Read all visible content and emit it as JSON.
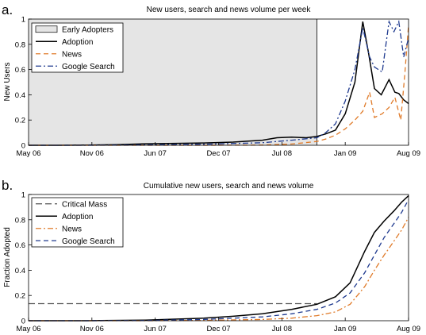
{
  "chart_data": [
    {
      "type": "line",
      "panel_label": "a.",
      "title": "New users, search and news volume per week",
      "xlabel": "",
      "ylabel": "New Users",
      "x_ticks": [
        "May 06",
        "Nov 06",
        "Jun 07",
        "Dec 07",
        "Jul 08",
        "Jan 09",
        "Aug 09"
      ],
      "xlim": [
        0,
        39
      ],
      "ylim": [
        0,
        1
      ],
      "y_ticks": [
        "0",
        "0.2",
        "0.4",
        "0.6",
        "0.8",
        "1"
      ],
      "grid": false,
      "legend_position": "top-left",
      "shaded_region": {
        "name": "Early Adopters",
        "x_start": 0,
        "x_end": 29.6,
        "color": "#e5e5e5"
      },
      "series": [
        {
          "name": "Adoption",
          "color": "#000000",
          "dash": "solid",
          "x": [
            0,
            3,
            6,
            9,
            12,
            15,
            18,
            21,
            24,
            25.5,
            27,
            28.5,
            29.6,
            30.5,
            31.5,
            32.5,
            33.5,
            34.3,
            34.9,
            35.5,
            36.2,
            37.0,
            37.6,
            38.0,
            38.5,
            39.0
          ],
          "y": [
            0,
            0,
            0.002,
            0.005,
            0.012,
            0.015,
            0.018,
            0.025,
            0.04,
            0.06,
            0.065,
            0.06,
            0.07,
            0.09,
            0.12,
            0.25,
            0.5,
            0.98,
            0.73,
            0.45,
            0.4,
            0.52,
            0.42,
            0.41,
            0.36,
            0.33
          ]
        },
        {
          "name": "News",
          "color": "#e07b2a",
          "dash": "dashed",
          "x": [
            0,
            6,
            12,
            18,
            24,
            27,
            29.6,
            30.5,
            31.5,
            32.5,
            33.5,
            34.3,
            35.0,
            35.5,
            36.3,
            37.0,
            37.6,
            38.2,
            38.6,
            39.0
          ],
          "y": [
            0,
            0,
            0,
            0,
            0.002,
            0.01,
            0.03,
            0.05,
            0.08,
            0.13,
            0.2,
            0.27,
            0.42,
            0.22,
            0.25,
            0.3,
            0.38,
            0.2,
            0.55,
            0.95
          ]
        },
        {
          "name": "Google Search",
          "color": "#1f3a8f",
          "dash": "dash-dot",
          "x": [
            0,
            6,
            12,
            18,
            24,
            27,
            29.6,
            30.5,
            31.5,
            32.5,
            33.5,
            34.3,
            35.0,
            35.5,
            36.3,
            37.0,
            37.5,
            38.0,
            38.5,
            39.0
          ],
          "y": [
            0,
            0,
            0.003,
            0.008,
            0.02,
            0.04,
            0.06,
            0.1,
            0.17,
            0.35,
            0.6,
            0.93,
            0.7,
            0.62,
            0.58,
            0.98,
            0.9,
            0.98,
            0.7,
            0.85
          ]
        }
      ]
    },
    {
      "type": "line",
      "panel_label": "b.",
      "title": "Cumulative new users, search and news volume",
      "xlabel": "",
      "ylabel": "Fraction Adopted",
      "x_ticks": [
        "May 06",
        "Nov 06",
        "Jun 07",
        "Dec 07",
        "Jul 08",
        "Jan 09",
        "Aug 09"
      ],
      "xlim": [
        0,
        39
      ],
      "ylim": [
        0,
        1
      ],
      "y_ticks": [
        "0",
        "0.2",
        "0.4",
        "0.6",
        "0.8",
        "1"
      ],
      "grid": false,
      "legend_position": "top-left",
      "series": [
        {
          "name": "Critical Mass",
          "color": "#555555",
          "dash": "long-dashed",
          "x": [
            0,
            29.6
          ],
          "y": [
            0.135,
            0.135
          ]
        },
        {
          "name": "Adoption",
          "color": "#000000",
          "dash": "solid",
          "x": [
            0,
            6,
            12,
            18,
            21,
            24,
            27,
            29.6,
            31.5,
            33,
            34.5,
            35.5,
            36.5,
            37.5,
            38.3,
            39.0
          ],
          "y": [
            0,
            0,
            0.005,
            0.02,
            0.035,
            0.055,
            0.09,
            0.13,
            0.19,
            0.3,
            0.55,
            0.7,
            0.79,
            0.87,
            0.94,
            0.99
          ]
        },
        {
          "name": "News",
          "color": "#e07b2a",
          "dash": "dash-dot",
          "x": [
            0,
            12,
            18,
            24,
            27,
            29.6,
            31.5,
            33,
            34.5,
            35.5,
            36.5,
            37.5,
            38.3,
            39.0
          ],
          "y": [
            0,
            0,
            0.003,
            0.01,
            0.02,
            0.04,
            0.07,
            0.13,
            0.27,
            0.4,
            0.52,
            0.63,
            0.72,
            0.82
          ]
        },
        {
          "name": "Google Search",
          "color": "#1f3a8f",
          "dash": "dashed",
          "x": [
            0,
            6,
            12,
            18,
            24,
            27,
            29.6,
            31.5,
            33,
            34.5,
            35.5,
            36.5,
            37.5,
            38.3,
            39.0
          ],
          "y": [
            0,
            0,
            0.002,
            0.01,
            0.03,
            0.055,
            0.09,
            0.14,
            0.22,
            0.38,
            0.52,
            0.66,
            0.77,
            0.86,
            0.96
          ]
        }
      ]
    }
  ]
}
